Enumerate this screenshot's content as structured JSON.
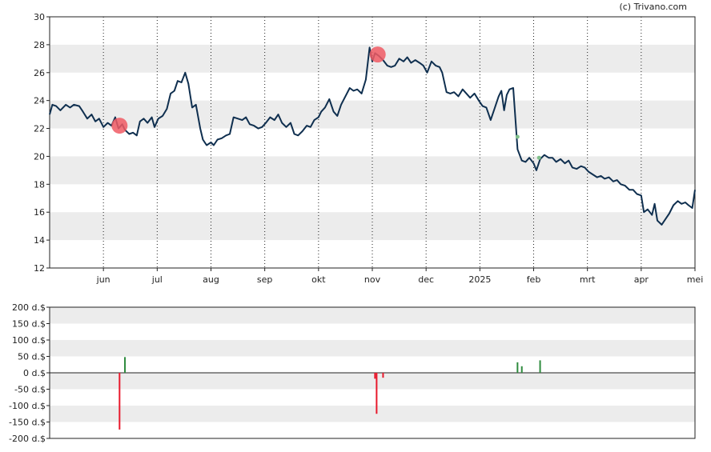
{
  "credit": "(c) Trivano.com",
  "colors": {
    "price_line": "#0f2f4f",
    "band": "#ececec",
    "sell": "#e8192c",
    "buy": "#2e8b3e",
    "sell_marker": "#f05a64",
    "buy_marker": "#7fc08a"
  },
  "chart_data": [
    {
      "type": "line",
      "x_tick_labels": [
        "jun",
        "jul",
        "aug",
        "sep",
        "okt",
        "nov",
        "dec",
        "2025",
        "feb",
        "mrt",
        "apr",
        "mei"
      ],
      "x_tick_positions": [
        1,
        2,
        3,
        4,
        5,
        6,
        7,
        8,
        9,
        10,
        11,
        12
      ],
      "xlim": [
        0.0,
        12.0
      ],
      "ylim": [
        12,
        30
      ],
      "y_ticks": [
        12,
        14,
        16,
        18,
        20,
        22,
        24,
        26,
        28,
        30
      ],
      "y_tick_labels": [
        "12",
        "14",
        "16",
        "18",
        "20",
        "22",
        "24",
        "26",
        "28",
        "30"
      ],
      "grid": "vertical-dotted",
      "series": [
        {
          "x": [
            0.0,
            0.05,
            0.12,
            0.2,
            0.3,
            0.38,
            0.45,
            0.55,
            0.62,
            0.7,
            0.78,
            0.85,
            0.92,
            1.0,
            1.08,
            1.15,
            1.22,
            1.28,
            1.35,
            1.4,
            1.48,
            1.55,
            1.62,
            1.68,
            1.75,
            1.82,
            1.9,
            1.95,
            2.02,
            2.1,
            2.18,
            2.25,
            2.32,
            2.38,
            2.45,
            2.52,
            2.58,
            2.65,
            2.72,
            2.8,
            2.85,
            2.92,
            3.0,
            3.05,
            3.12,
            3.2,
            3.28,
            3.35,
            3.42,
            3.5,
            3.58,
            3.65,
            3.72,
            3.8,
            3.88,
            3.95,
            4.02,
            4.1,
            4.18,
            4.25,
            4.32,
            4.4,
            4.48,
            4.55,
            4.62,
            4.7,
            4.78,
            4.85,
            4.92,
            5.0,
            5.05,
            5.12,
            5.2,
            5.28,
            5.35,
            5.42,
            5.5,
            5.58,
            5.65,
            5.72,
            5.8,
            5.88,
            5.95,
            6.0,
            6.05,
            6.12,
            6.2,
            6.28,
            6.35,
            6.42,
            6.5,
            6.58,
            6.65,
            6.72,
            6.8,
            6.88,
            6.95,
            7.02,
            7.1,
            7.18,
            7.25,
            7.3,
            7.38,
            7.45,
            7.52,
            7.6,
            7.68,
            7.75,
            7.82,
            7.9,
            7.98,
            8.05,
            8.12,
            8.2,
            8.28,
            8.35,
            8.4,
            8.45,
            8.5,
            8.55,
            8.62,
            8.7,
            8.78,
            8.85,
            8.92,
            9.0,
            9.05,
            9.12,
            9.2,
            9.28,
            9.35,
            9.42,
            9.5,
            9.58,
            9.65,
            9.72,
            9.8,
            9.88,
            9.95,
            10.02,
            10.1,
            10.18,
            10.25,
            10.32,
            10.4,
            10.48,
            10.55,
            10.62,
            10.7,
            10.78,
            10.85,
            10.92,
            11.0,
            11.05,
            11.12,
            11.2,
            11.25,
            11.3,
            11.38,
            11.45,
            11.52,
            11.6,
            11.68,
            11.75,
            11.82,
            11.88,
            11.95,
            12.0
          ],
          "values": [
            23.0,
            23.7,
            23.6,
            23.3,
            23.7,
            23.5,
            23.7,
            23.6,
            23.2,
            22.7,
            23.0,
            22.5,
            22.7,
            22.1,
            22.4,
            22.2,
            22.8,
            22.0,
            22.3,
            21.9,
            21.6,
            21.7,
            21.5,
            22.5,
            22.7,
            22.4,
            22.8,
            22.1,
            22.7,
            22.9,
            23.4,
            24.5,
            24.7,
            25.4,
            25.3,
            26.0,
            25.2,
            23.5,
            23.7,
            22.0,
            21.2,
            20.8,
            21.0,
            20.8,
            21.2,
            21.3,
            21.5,
            21.6,
            22.8,
            22.7,
            22.6,
            22.8,
            22.3,
            22.2,
            22.0,
            22.1,
            22.4,
            22.8,
            22.6,
            23.0,
            22.4,
            22.1,
            22.4,
            21.6,
            21.5,
            21.8,
            22.2,
            22.1,
            22.6,
            22.8,
            23.2,
            23.5,
            24.1,
            23.2,
            22.9,
            23.7,
            24.3,
            24.9,
            24.7,
            24.8,
            24.5,
            25.5,
            27.8,
            26.8,
            27.4,
            27.2,
            26.9,
            26.5,
            26.4,
            26.5,
            27.0,
            26.8,
            27.1,
            26.7,
            26.9,
            26.7,
            26.5,
            26.0,
            26.8,
            26.5,
            26.4,
            26.0,
            24.6,
            24.5,
            24.6,
            24.3,
            24.8,
            24.5,
            24.2,
            24.5,
            24.0,
            23.6,
            23.5,
            22.6,
            23.5,
            24.3,
            24.7,
            23.3,
            24.4,
            24.8,
            24.9,
            20.5,
            19.7,
            19.6,
            19.9,
            19.5,
            19.0,
            19.8,
            20.1,
            19.9,
            19.9,
            19.6,
            19.8,
            19.5,
            19.7,
            19.2,
            19.1,
            19.3,
            19.2,
            18.9,
            18.7,
            18.5,
            18.6,
            18.4,
            18.5,
            18.2,
            18.3,
            18.0,
            17.9,
            17.6,
            17.6,
            17.3,
            17.2,
            16.0,
            16.2,
            15.8,
            16.6,
            15.4,
            15.1,
            15.5,
            15.9,
            16.5,
            16.8,
            16.6,
            16.7,
            16.5,
            16.3,
            17.6
          ]
        }
      ],
      "annotations": [
        {
          "type": "sell",
          "x": 1.3,
          "y": 22.2
        },
        {
          "type": "sell",
          "x": 6.1,
          "y": 27.3
        },
        {
          "type": "buy",
          "x": 8.7,
          "y": 21.4
        },
        {
          "type": "buy",
          "x": 9.1,
          "y": 19.9
        }
      ]
    },
    {
      "type": "bar",
      "xlim": [
        0.0,
        12.0
      ],
      "ylim": [
        -200,
        200
      ],
      "y_ticks": [
        -200,
        -150,
        -100,
        -50,
        0,
        50,
        100,
        150,
        200
      ],
      "y_tick_labels": [
        "-200 d.$",
        "-150 d.$",
        "-100 d.$",
        "-50 d.$",
        "0 d.$",
        "50 d.$",
        "100 d.$",
        "150 d.$",
        "200 d.$"
      ],
      "series": [
        {
          "x": 1.3,
          "value": -173
        },
        {
          "x": 1.4,
          "value": 48
        },
        {
          "x": 6.05,
          "value": -18
        },
        {
          "x": 6.08,
          "value": -125
        },
        {
          "x": 6.2,
          "value": -15
        },
        {
          "x": 8.7,
          "value": 32
        },
        {
          "x": 8.78,
          "value": 20
        },
        {
          "x": 9.12,
          "value": 38
        }
      ]
    }
  ]
}
